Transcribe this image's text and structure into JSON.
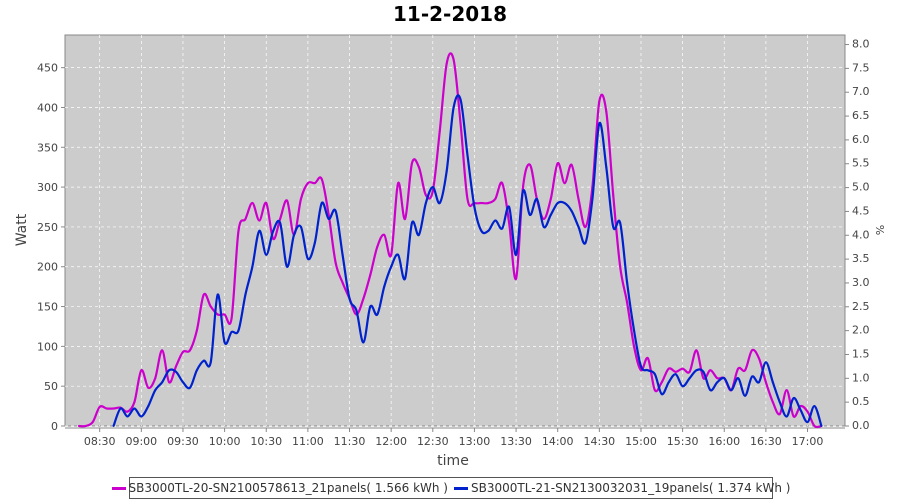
{
  "chart_data": {
    "type": "line",
    "title": "11-2-2018",
    "xlabel": "time",
    "ylabel": "Watt",
    "y2label": "%",
    "ylim": [
      0,
      491
    ],
    "y2lim": [
      0,
      8.2
    ],
    "xlim": [
      "08:05",
      "17:27"
    ],
    "grid": true,
    "legend_position": "bottom",
    "xticks": [
      "08:30",
      "09:00",
      "09:30",
      "10:00",
      "10:30",
      "11:00",
      "11:30",
      "12:00",
      "12:30",
      "13:00",
      "13:30",
      "14:00",
      "14:30",
      "15:00",
      "15:30",
      "16:00",
      "16:30",
      "17:00"
    ],
    "yticks": [
      0,
      50,
      100,
      150,
      200,
      250,
      300,
      350,
      400,
      450
    ],
    "y2ticks": [
      "0.0",
      "0.5",
      "1.0",
      "1.5",
      "2.0",
      "2.5",
      "3.0",
      "3.5",
      "4.0",
      "4.5",
      "5.0",
      "5.5",
      "6.0",
      "6.5",
      "7.0",
      "7.5",
      "8.0"
    ],
    "series": [
      {
        "name": "SB3000TL-20-SN2100578613_21panels( 1.566 kWh )",
        "color": "#cc00cc",
        "start": "08:15",
        "step_min": 5,
        "values": [
          0,
          0,
          5,
          24,
          22,
          22,
          23,
          18,
          30,
          70,
          48,
          60,
          95,
          55,
          75,
          93,
          95,
          120,
          165,
          150,
          140,
          140,
          135,
          245,
          260,
          280,
          258,
          280,
          235,
          260,
          283,
          240,
          285,
          305,
          305,
          310,
          265,
          205,
          180,
          160,
          140,
          160,
          190,
          225,
          240,
          215,
          305,
          260,
          330,
          325,
          290,
          295,
          370,
          455,
          460,
          380,
          285,
          280,
          280,
          280,
          285,
          305,
          255,
          185,
          300,
          328,
          285,
          260,
          285,
          330,
          305,
          328,
          285,
          250,
          300,
          408,
          395,
          290,
          200,
          155,
          100,
          70,
          85,
          45,
          55,
          72,
          68,
          72,
          68,
          95,
          60,
          70,
          60,
          60,
          45,
          72,
          70,
          95,
          85,
          55,
          30,
          15,
          45,
          12,
          25,
          18,
          0,
          0
        ]
      },
      {
        "name": "SB3000TL-21-SN2130032031_19panels( 1.374 kWh )",
        "color": "#0022cc",
        "start": "08:40",
        "step_min": 5,
        "values": [
          0,
          22,
          12,
          22,
          12,
          25,
          45,
          55,
          70,
          68,
          55,
          48,
          70,
          82,
          80,
          165,
          105,
          118,
          120,
          165,
          200,
          245,
          215,
          245,
          255,
          200,
          240,
          250,
          210,
          230,
          280,
          260,
          270,
          215,
          160,
          145,
          105,
          150,
          140,
          175,
          200,
          215,
          185,
          255,
          240,
          280,
          300,
          280,
          320,
          400,
          410,
          340,
          275,
          245,
          245,
          258,
          248,
          275,
          215,
          295,
          265,
          285,
          250,
          265,
          280,
          280,
          270,
          250,
          230,
          285,
          380,
          325,
          250,
          255,
          180,
          120,
          75,
          70,
          65,
          40,
          55,
          65,
          50,
          60,
          70,
          68,
          45,
          55,
          60,
          45,
          60,
          38,
          62,
          55,
          80,
          55,
          30,
          12,
          35,
          20,
          5,
          25,
          0
        ]
      }
    ]
  },
  "legend": {
    "items": [
      "SB3000TL-20-SN2100578613_21panels( 1.566 kWh )",
      "SB3000TL-21-SN2130032031_19panels( 1.374 kWh )"
    ]
  }
}
